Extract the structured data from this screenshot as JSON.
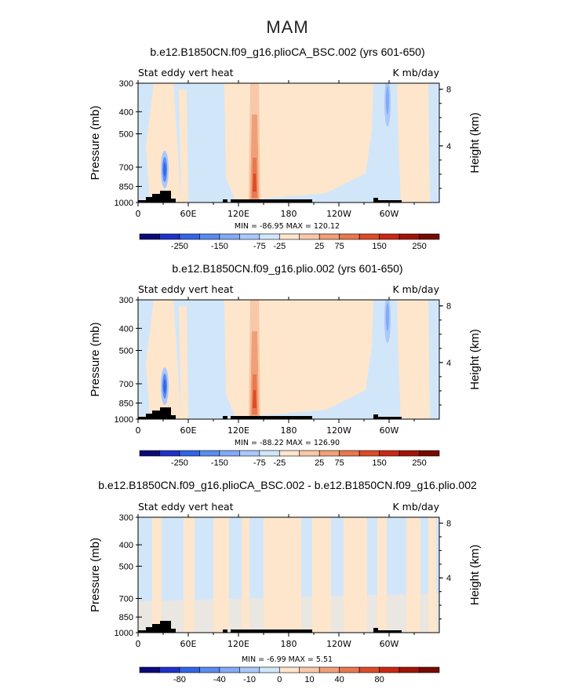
{
  "figure": {
    "title": "MAM"
  },
  "panels": [
    {
      "title": "b.e12.B1850CN.f09_g16.plioCA_BSC.002 (yrs 601-650)",
      "left_label": "Stat eddy vert heat",
      "right_label": "K mb/day",
      "ylabel": "Pressure (mb)",
      "ylabel_right": "Height (km)",
      "yticks": [
        "300",
        "400",
        "500",
        "700",
        "850",
        "1000"
      ],
      "yticks_right": [
        "8",
        "4"
      ],
      "xticks": [
        "0",
        "60E",
        "120E",
        "180",
        "120W",
        "60W"
      ],
      "stats": "MIN = -86.95   MAX = 120.12",
      "colorbar_labels": [
        "-250",
        "-150",
        "-75",
        "-25",
        "25",
        "75",
        "150",
        "250"
      ]
    },
    {
      "title": "b.e12.B1850CN.f09_g16.plio.002 (yrs 601-650)",
      "left_label": "Stat eddy vert heat",
      "right_label": "K mb/day",
      "ylabel": "Pressure (mb)",
      "ylabel_right": "Height (km)",
      "yticks": [
        "300",
        "400",
        "500",
        "700",
        "850",
        "1000"
      ],
      "yticks_right": [
        "8",
        "4"
      ],
      "xticks": [
        "0",
        "60E",
        "120E",
        "180",
        "120W",
        "60W"
      ],
      "stats": "MIN = -88.22   MAX = 126.90",
      "colorbar_labels": [
        "-250",
        "-150",
        "-75",
        "-25",
        "25",
        "75",
        "150",
        "250"
      ]
    },
    {
      "title": "b.e12.B1850CN.f09_g16.plioCA_BSC.002 - b.e12.B1850CN.f09_g16.plio.002",
      "left_label": "Stat eddy vert heat",
      "right_label": "K mb/day",
      "ylabel": "Pressure (mb)",
      "ylabel_right": "Height (km)",
      "yticks": [
        "300",
        "400",
        "500",
        "700",
        "850",
        "1000"
      ],
      "yticks_right": [
        "8",
        "4"
      ],
      "xticks": [
        "0",
        "60E",
        "120E",
        "180",
        "120W",
        "60W"
      ],
      "stats": "MIN = -6.99   MAX = 5.51",
      "colorbar_labels": [
        "-80",
        "-40",
        "-10",
        "0",
        "10",
        "40",
        "80"
      ]
    }
  ],
  "palette": {
    "blues": [
      "#0a0a78",
      "#1e32c8",
      "#3264e6",
      "#5a8cf0",
      "#82aaf5",
      "#aac8fa",
      "#d2e6fa"
    ],
    "oranges": [
      "#fde6cc",
      "#f8c8a8",
      "#f0a078",
      "#e87850",
      "#dc4b28",
      "#c82814",
      "#a01408",
      "#780a00"
    ]
  },
  "chart_data": [
    {
      "type": "heatmap",
      "title": "b.e12.B1850CN.f09_g16.plioCA_BSC.002 (yrs 601-650)",
      "variable": "Stat eddy vert heat",
      "units": "K mb/day",
      "x_axis": {
        "label": "",
        "range": [
          0,
          360
        ],
        "ticks": [
          0,
          60,
          120,
          180,
          240,
          300
        ]
      },
      "y_axis": {
        "label": "Pressure (mb)",
        "range": [
          1000,
          300
        ],
        "ticks": [
          300,
          400,
          500,
          700,
          850,
          1000
        ]
      },
      "y2_axis": {
        "label": "Height (km)",
        "ticks": [
          4,
          8
        ]
      },
      "levels": [
        -250,
        -200,
        -150,
        -100,
        -75,
        -50,
        -25,
        25,
        50,
        75,
        100,
        150,
        200,
        250
      ],
      "min": -86.95,
      "max": 120.12
    },
    {
      "type": "heatmap",
      "title": "b.e12.B1850CN.f09_g16.plio.002 (yrs 601-650)",
      "variable": "Stat eddy vert heat",
      "units": "K mb/day",
      "x_axis": {
        "label": "",
        "range": [
          0,
          360
        ],
        "ticks": [
          0,
          60,
          120,
          180,
          240,
          300
        ]
      },
      "y_axis": {
        "label": "Pressure (mb)",
        "range": [
          1000,
          300
        ],
        "ticks": [
          300,
          400,
          500,
          700,
          850,
          1000
        ]
      },
      "y2_axis": {
        "label": "Height (km)",
        "ticks": [
          4,
          8
        ]
      },
      "levels": [
        -250,
        -200,
        -150,
        -100,
        -75,
        -50,
        -25,
        25,
        50,
        75,
        100,
        150,
        200,
        250
      ],
      "min": -88.22,
      "max": 126.9
    },
    {
      "type": "heatmap",
      "title": "b.e12.B1850CN.f09_g16.plioCA_BSC.002 - b.e12.B1850CN.f09_g16.plio.002",
      "variable": "Stat eddy vert heat",
      "units": "K mb/day",
      "x_axis": {
        "label": "",
        "range": [
          0,
          360
        ],
        "ticks": [
          0,
          60,
          120,
          180,
          240,
          300
        ]
      },
      "y_axis": {
        "label": "Pressure (mb)",
        "range": [
          1000,
          300
        ],
        "ticks": [
          300,
          400,
          500,
          700,
          850,
          1000
        ]
      },
      "y2_axis": {
        "label": "Height (km)",
        "ticks": [
          4,
          8
        ]
      },
      "levels": [
        -80,
        -60,
        -40,
        -20,
        -10,
        -5,
        0,
        5,
        10,
        20,
        40,
        60,
        80
      ],
      "min": -6.99,
      "max": 5.51
    }
  ]
}
